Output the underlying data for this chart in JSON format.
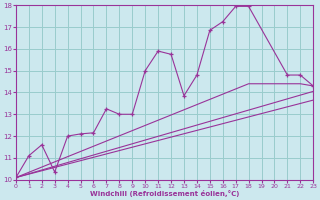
{
  "xlabel": "Windchill (Refroidissement éolien,°C)",
  "background_color": "#cce8ee",
  "line_color": "#993399",
  "grid_color": "#99cccc",
  "xmin": 0,
  "xmax": 23,
  "ymin": 10,
  "ymax": 18,
  "xticks": [
    0,
    1,
    2,
    3,
    4,
    5,
    6,
    7,
    8,
    9,
    10,
    11,
    12,
    13,
    14,
    15,
    16,
    17,
    18,
    19,
    20,
    21,
    22,
    23
  ],
  "yticks": [
    10,
    11,
    12,
    13,
    14,
    15,
    16,
    17,
    18
  ],
  "series1_x": [
    0,
    1,
    2,
    3,
    4,
    5,
    6,
    7,
    8,
    9,
    10,
    11,
    12,
    13,
    14,
    15,
    16,
    17,
    18,
    21,
    22,
    23
  ],
  "series1_y": [
    10.1,
    11.1,
    11.6,
    10.35,
    12.0,
    12.1,
    12.15,
    13.25,
    13.0,
    13.0,
    15.0,
    15.9,
    15.75,
    13.85,
    14.8,
    16.85,
    17.25,
    17.95,
    17.95,
    14.8,
    14.8,
    14.3
  ],
  "series2_x": [
    0,
    18,
    19,
    22,
    23
  ],
  "series2_y": [
    10.1,
    14.4,
    14.4,
    14.4,
    14.3
  ],
  "series3_x": [
    0,
    23
  ],
  "series3_y": [
    10.1,
    13.65
  ],
  "series4_x": [
    0,
    23
  ],
  "series4_y": [
    10.1,
    14.05
  ]
}
